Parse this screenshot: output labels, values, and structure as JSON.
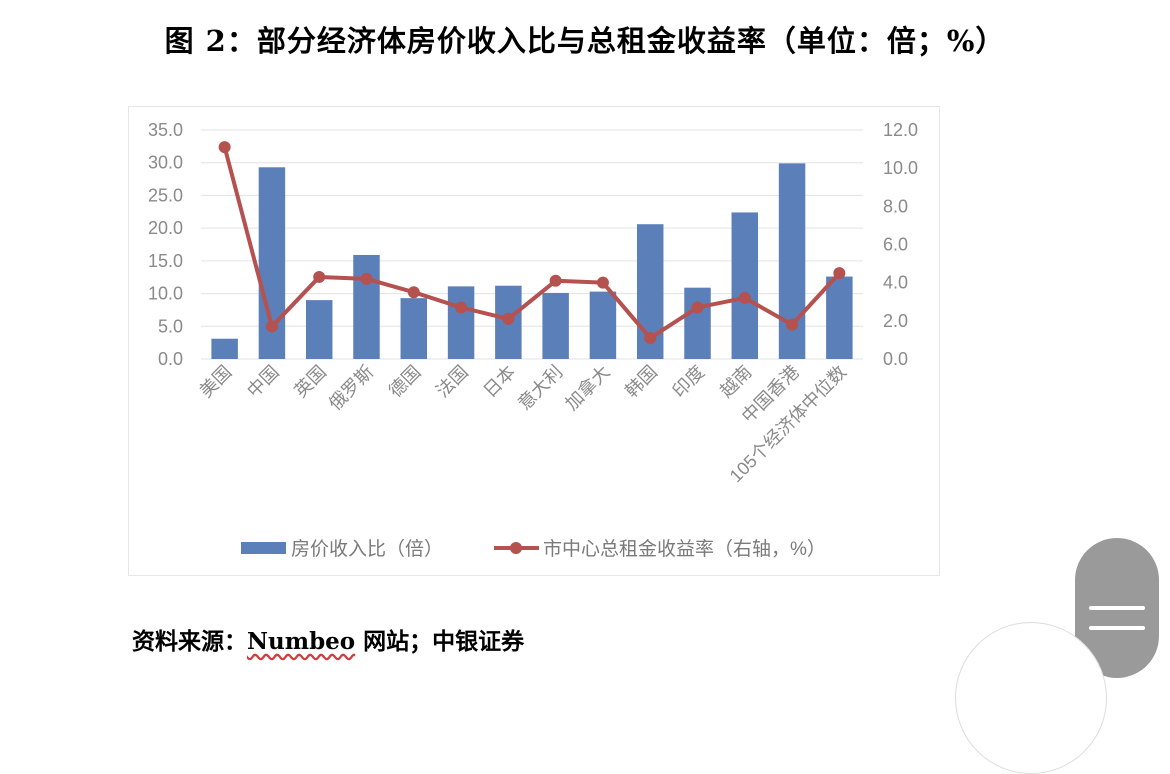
{
  "figure": {
    "title": "图 2：部分经济体房价收入比与总租金收益率（单位：倍；%）",
    "source_prefix": "资料来源：",
    "source_underlined": "Numbeo",
    "source_suffix": " 网站；中银证券"
  },
  "chart_data": {
    "type": "bar",
    "categories": [
      "美国",
      "中国",
      "英国",
      "俄罗斯",
      "德国",
      "法国",
      "日本",
      "意大利",
      "加拿大",
      "韩国",
      "印度",
      "越南",
      "中国香港",
      "105个经济体中位数"
    ],
    "series": [
      {
        "name": "房价收入比（倍）",
        "type": "bar",
        "axis": "left",
        "color": "#5b7fb8",
        "values": [
          3.1,
          29.3,
          9.0,
          15.9,
          9.3,
          11.1,
          11.2,
          10.1,
          10.3,
          20.6,
          10.9,
          22.4,
          29.9,
          12.6
        ]
      },
      {
        "name": "市中心总租金收益率（右轴，%）",
        "type": "line",
        "axis": "right",
        "color": "#b5514f",
        "values": [
          11.1,
          1.7,
          4.3,
          4.2,
          3.5,
          2.7,
          2.1,
          4.1,
          4.0,
          1.1,
          2.7,
          3.2,
          1.8,
          4.5
        ]
      }
    ],
    "y_left": {
      "ylim": [
        0,
        35
      ],
      "ticks": [
        "0.0",
        "5.0",
        "10.0",
        "15.0",
        "20.0",
        "25.0",
        "30.0",
        "35.0"
      ]
    },
    "y_right": {
      "ylim": [
        0,
        12
      ],
      "ticks": [
        "0.0",
        "2.0",
        "4.0",
        "6.0",
        "8.0",
        "10.0",
        "12.0"
      ]
    },
    "gridlines": true,
    "legend_position": "bottom",
    "x_label_rotation": -45
  }
}
